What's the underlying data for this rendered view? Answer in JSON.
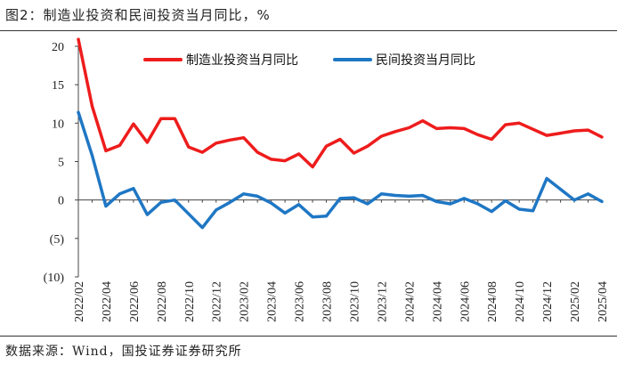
{
  "figure": {
    "title": "图2：制造业投资和民间投资当月同比，%",
    "source": "数据来源：Wind，国投证券证券研究所"
  },
  "chart_data": {
    "type": "line",
    "title": "",
    "xlabel": "",
    "ylabel": "",
    "ylim": [
      -10,
      20
    ],
    "yticks": [
      20,
      15,
      10,
      5,
      0,
      -5,
      -10
    ],
    "ytick_labels": [
      "20",
      "15",
      "10",
      "5",
      "0",
      "(5)",
      "(10)"
    ],
    "grid": false,
    "legend_position": "top",
    "x": [
      "2022/02",
      "2022/03",
      "2022/04",
      "2022/05",
      "2022/06",
      "2022/07",
      "2022/08",
      "2022/09",
      "2022/10",
      "2022/11",
      "2022/12",
      "2023/01",
      "2023/02",
      "2023/03",
      "2023/04",
      "2023/05",
      "2023/06",
      "2023/07",
      "2023/08",
      "2023/09",
      "2023/10",
      "2023/11",
      "2023/12",
      "2024/01",
      "2024/02",
      "2024/03",
      "2024/04",
      "2024/05",
      "2024/06",
      "2024/07",
      "2024/08",
      "2024/09",
      "2024/10",
      "2024/11",
      "2024/12",
      "2025/01",
      "2025/02",
      "2025/03",
      "2025/04"
    ],
    "xtick_labels": [
      "2022/02",
      "2022/04",
      "2022/06",
      "2022/08",
      "2022/10",
      "2022/12",
      "2023/02",
      "2023/04",
      "2023/06",
      "2023/08",
      "2023/10",
      "2023/12",
      "2024/02",
      "2024/04",
      "2024/06",
      "2024/08",
      "2024/10",
      "2024/12",
      "2025/02",
      "2025/04"
    ],
    "series": [
      {
        "name": "制造业投资当月同比",
        "color": "#ee1c1c",
        "values": [
          20.9,
          12.2,
          6.4,
          7.1,
          9.9,
          7.5,
          10.6,
          10.6,
          6.9,
          6.2,
          7.4,
          7.8,
          8.1,
          6.2,
          5.3,
          5.1,
          6.0,
          4.3,
          7.0,
          7.9,
          6.1,
          7.0,
          8.3,
          8.9,
          9.4,
          10.3,
          9.3,
          9.4,
          9.3,
          8.5,
          7.9,
          9.8,
          10.0,
          9.2,
          8.4,
          8.7,
          9.0,
          9.1,
          8.2
        ]
      },
      {
        "name": "民间投资当月同比",
        "color": "#1f77c4",
        "values": [
          11.4,
          5.8,
          -0.8,
          0.8,
          1.5,
          -1.9,
          -0.3,
          0.0,
          -1.8,
          -3.6,
          -1.3,
          -0.3,
          0.8,
          0.5,
          -0.4,
          -1.7,
          -0.6,
          -2.2,
          -2.1,
          0.2,
          0.3,
          -0.5,
          0.8,
          0.6,
          0.5,
          0.6,
          -0.2,
          -0.5,
          0.2,
          -0.5,
          -1.5,
          -0.1,
          -1.2,
          -1.4,
          2.8,
          1.4,
          0.0,
          0.8,
          -0.2
        ]
      }
    ]
  }
}
